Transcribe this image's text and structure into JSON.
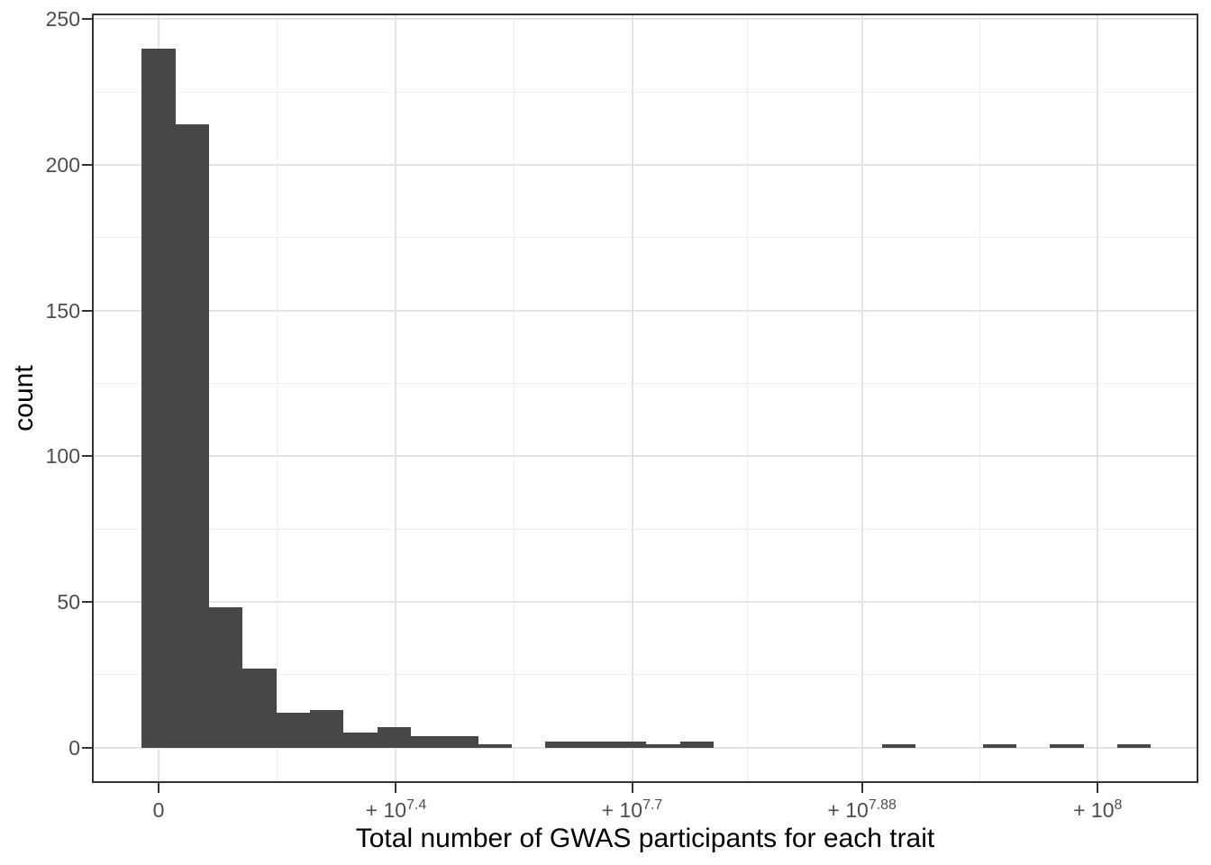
{
  "chart_data": {
    "type": "histogram",
    "title": "",
    "xlabel": "Total number of GWAS participants for each trait",
    "ylabel": "count",
    "ylim": [
      -12.2,
      252
    ],
    "grid": true,
    "legend": false,
    "y_major_ticks": [
      0,
      50,
      100,
      150,
      200,
      250
    ],
    "y_minor_ticks": [
      25,
      75,
      125,
      175,
      225
    ],
    "x_ticks": [
      {
        "base": "0",
        "sup": "",
        "pos": 0.0603
      },
      {
        "base": "+ 10",
        "sup": "7.4",
        "pos": 0.2748
      },
      {
        "base": "+ 10",
        "sup": "7.7",
        "pos": 0.4882
      },
      {
        "base": "+ 10",
        "sup": "7.88",
        "pos": 0.696
      },
      {
        "base": "+ 10",
        "sup": "8",
        "pos": 0.909
      }
    ],
    "x_minor_pos": [
      0.1676,
      0.3815,
      0.5921,
      0.8025
    ],
    "bins": {
      "first_bin_center_pos": 0.060261,
      "bin_width_pos": 0.030399,
      "counts": [
        240,
        214,
        48,
        27,
        12,
        13,
        5,
        7,
        4,
        4,
        1,
        0,
        2,
        2,
        2,
        1,
        2,
        0,
        0,
        0,
        0,
        0,
        1,
        0,
        0,
        1,
        0,
        1,
        0,
        1
      ]
    },
    "colors": {
      "bar_fill": "#474747",
      "grid_major": "#e3e3e3",
      "grid_minor": "#efefef",
      "panel_border": "#333333",
      "tick_mark": "#333333",
      "tick_label": "#4d4d4d",
      "axis_title": "#000000",
      "background": "#ffffff"
    }
  }
}
